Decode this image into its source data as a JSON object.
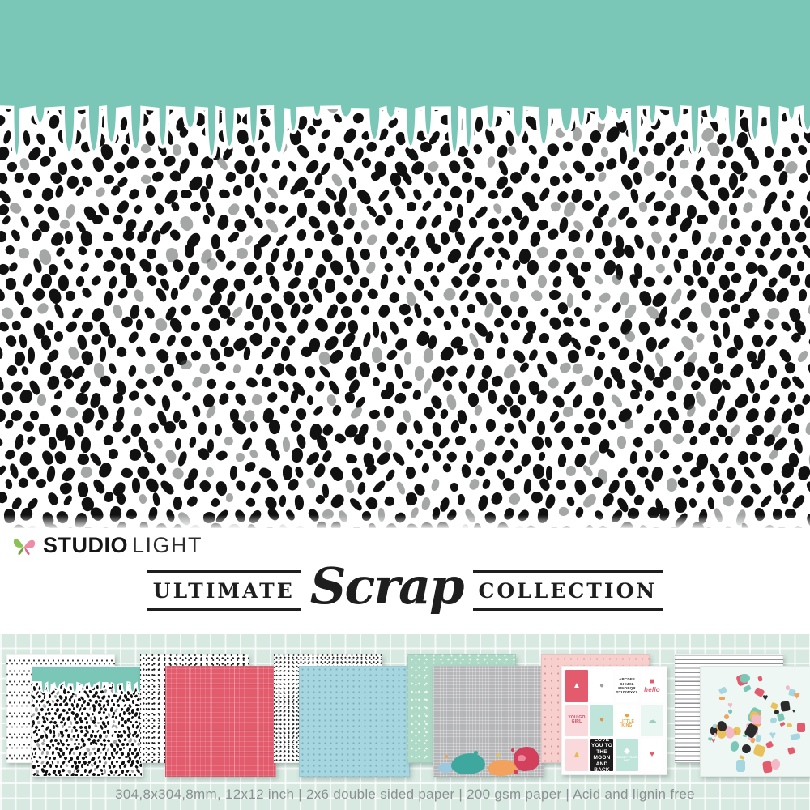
{
  "brand": {
    "studio": "STUDIO",
    "light": "LIGHT",
    "full_name": "STUDIO LIGHT"
  },
  "series": {
    "left": "ULTIMATE",
    "script": "Scrap",
    "right": "COLLECTION"
  },
  "specs": {
    "line": "304,8x304,8mm, 12x12 inch | 2x6 double sided paper | 200 gsm paper | Acid and lignin free"
  },
  "colors": {
    "teal": "#7AC6B7",
    "strip_background": "#D7E9E1",
    "coral_red": "#E25C6E",
    "light_blue": "#A6D6E0",
    "mint_green": "#AFD9C7",
    "gray_linen": "#B5B6B8",
    "soft_pink": "#F7CFCD",
    "ink": "#1C1C1C",
    "spec_text_gray": "#8A9190"
  },
  "papers": [
    {
      "back": "white with black doodle rows",
      "front": "teal paint drips over black dalmatian dots"
    },
    {
      "back": "white with dense black speckles",
      "front": "coral red crosshatch weave"
    },
    {
      "back": "white with tiny black marks",
      "front": "light blue with mini dots"
    },
    {
      "back": "mint with white snow dots",
      "front": "gray linen with colorful paint splats"
    },
    {
      "back": "pink with tiny dots",
      "front": "journaling cards grid"
    },
    {
      "back": "white with handwriting lines",
      "front": "mint die-cut party elements"
    }
  ],
  "cards": [
    {
      "bg": "#e25c6e",
      "art": "cake",
      "fg": "#ffffff"
    },
    {
      "bg": "#ffffff",
      "art": "owl",
      "fg": "#9aa0a0"
    },
    {
      "bg": "#ffffff",
      "label": "ABCDEF GHIJKL MNOPQR STUVWXYZ",
      "fg": "#2b2b2b"
    },
    {
      "bg": "#ffffff",
      "label": "hello",
      "art": "typewriter",
      "fg": "#e25c6e"
    },
    {
      "bg": "#f9d9dc",
      "label": "YOU GO GIRL",
      "fg": "#c04a5e"
    },
    {
      "bg": "#bfe5db",
      "art": "cat",
      "fg": "#e0924a"
    },
    {
      "bg": "#ffffff",
      "label": "LITTLE KING",
      "art": "lion",
      "fg": "#e8a13c"
    },
    {
      "bg": "#eaf6f2",
      "art": "whale",
      "fg": "#9ccfc3"
    },
    {
      "bg": "#f9d9dc",
      "art": "llama",
      "fg": "#e9b84f"
    },
    {
      "bg": "#1c1c1c",
      "label": "LOVE YOU TO THE MOON AND BACK",
      "fg": "#ffffff"
    },
    {
      "bg": "#bfe5db",
      "art": "tag",
      "label": "ENJOY YOUR DAY",
      "fg": "#ffffff"
    },
    {
      "bg": "#ffffff",
      "art": "heart",
      "fg": "#e25c6e"
    }
  ]
}
